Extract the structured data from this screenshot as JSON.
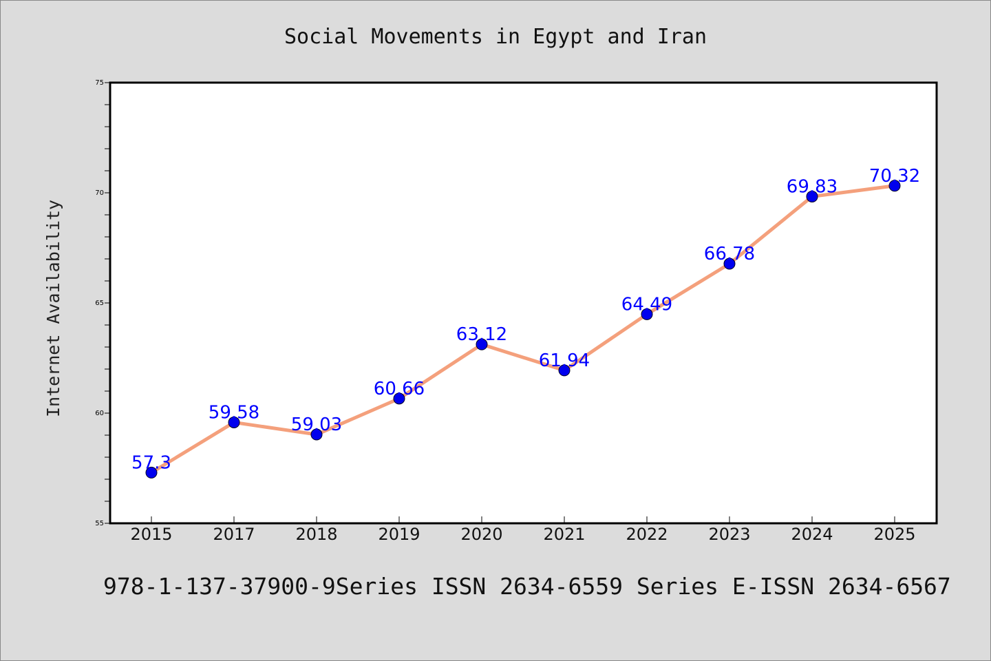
{
  "chart_data": {
    "type": "line",
    "title": "Social Movements in Egypt and Iran",
    "xlabel": "",
    "ylabel": "Internet Availability",
    "categories": [
      "2015",
      "2017",
      "2018",
      "2019",
      "2020",
      "2021",
      "2022",
      "2023",
      "2024",
      "2025"
    ],
    "series": [
      {
        "values": [
          57.3,
          59.58,
          59.03,
          60.66,
          63.12,
          61.94,
          64.49,
          66.78,
          69.83,
          70.32
        ],
        "data_labels": [
          "57.3",
          "59.58",
          "59.03",
          "60.66",
          "63.12",
          "61.94",
          "64.49",
          "66.78",
          "69.83",
          "70.32"
        ],
        "line_color": "#f4a07c",
        "marker_color": "#0000ee",
        "label_color": "#0000ff"
      }
    ],
    "ylim": [
      55,
      75
    ],
    "yticks": [
      "55",
      "60",
      "65",
      "70",
      "75"
    ],
    "grid": false,
    "legend": "none"
  },
  "footer": {
    "text": "978-1-137-37900-9Series ISSN 2634-6559 Series E-ISSN 2634-6567"
  },
  "colors": {
    "background": "#dcdcdc",
    "plot_background": "#ffffff"
  }
}
